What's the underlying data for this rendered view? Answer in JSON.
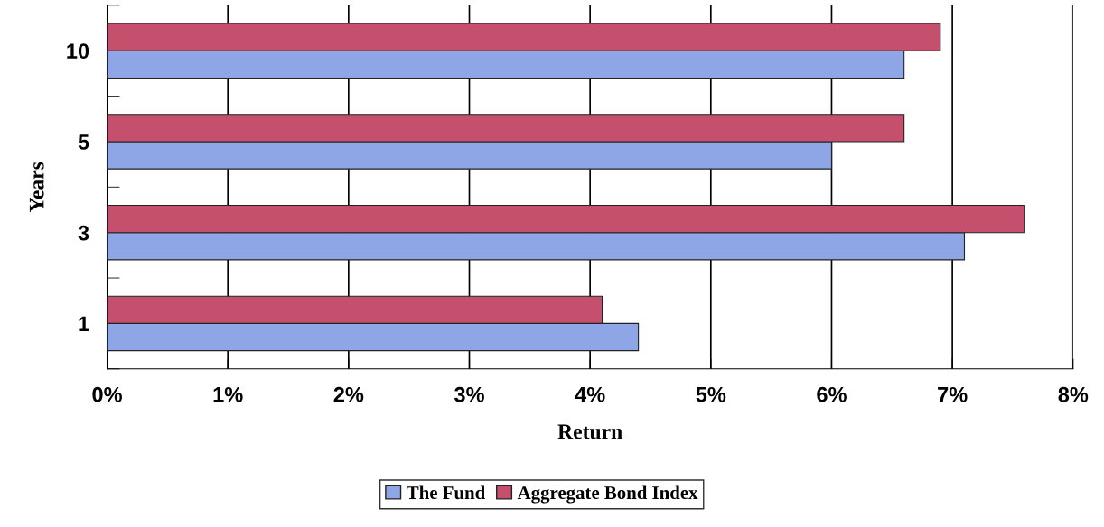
{
  "chart_data": {
    "type": "bar",
    "orientation": "horizontal",
    "xlabel": "Return",
    "ylabel": "Years",
    "categories": [
      "10",
      "5",
      "3",
      "1"
    ],
    "series": [
      {
        "name": "The Fund",
        "color": "#8fa6e6",
        "values": [
          6.6,
          6.0,
          7.1,
          4.4
        ]
      },
      {
        "name": "Aggregate Bond Index",
        "color": "#c4506e",
        "values": [
          6.9,
          6.6,
          7.6,
          4.1
        ]
      }
    ],
    "xlim": [
      0,
      8
    ],
    "xticks": [
      {
        "value": 0,
        "label": "0%"
      },
      {
        "value": 1,
        "label": "1%"
      },
      {
        "value": 2,
        "label": "2%"
      },
      {
        "value": 3,
        "label": "3%"
      },
      {
        "value": 4,
        "label": "4%"
      },
      {
        "value": 5,
        "label": "5%"
      },
      {
        "value": 6,
        "label": "6%"
      },
      {
        "value": 7,
        "label": "7%"
      },
      {
        "value": 8,
        "label": "8%"
      }
    ],
    "grid": "x",
    "legend": "bottom"
  }
}
